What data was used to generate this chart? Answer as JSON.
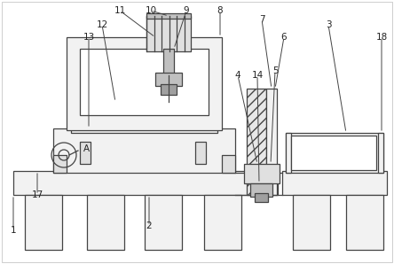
{
  "bg_color": "#ffffff",
  "lc": "#444444",
  "lw": 0.9,
  "figsize": [
    4.44,
    2.98
  ],
  "dpi": 100,
  "fc_light": "#f2f2f2",
  "fc_mid": "#e0e0e0",
  "fc_dark": "#c0c0c0",
  "fc_darker": "#a0a0a0",
  "label_fs": 7.5
}
